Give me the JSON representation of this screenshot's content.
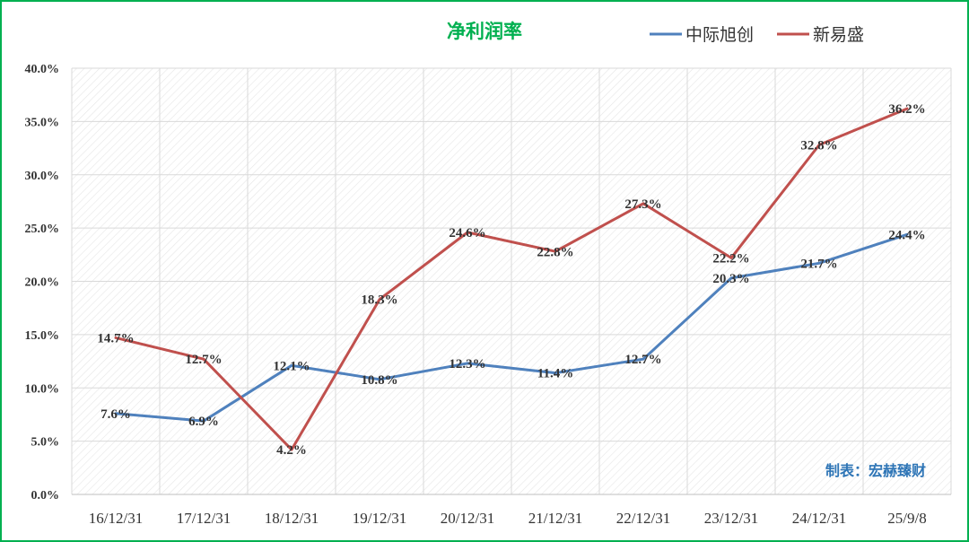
{
  "chart_data": {
    "type": "line",
    "title": "净利润率",
    "categories": [
      "16/12/31",
      "17/12/31",
      "18/12/31",
      "19/12/31",
      "20/12/31",
      "21/12/31",
      "22/12/31",
      "23/12/31",
      "24/12/31",
      "25/9/8"
    ],
    "y_ticks": [
      "0.0%",
      "5.0%",
      "10.0%",
      "15.0%",
      "20.0%",
      "25.0%",
      "30.0%",
      "35.0%",
      "40.0%"
    ],
    "ylim": [
      0,
      40
    ],
    "series": [
      {
        "name": "中际旭创",
        "color": "#4f81bd",
        "values": [
          7.6,
          6.9,
          12.1,
          10.8,
          12.3,
          11.4,
          12.7,
          20.3,
          21.7,
          24.4
        ],
        "labels": [
          "7.6%",
          "6.9%",
          "12.1%",
          "10.8%",
          "12.3%",
          "11.4%",
          "12.7%",
          "20.3%",
          "21.7%",
          "24.4%"
        ]
      },
      {
        "name": "新易盛",
        "color": "#c0504d",
        "values": [
          14.7,
          12.7,
          4.2,
          18.3,
          24.6,
          22.8,
          27.3,
          22.2,
          32.8,
          36.2
        ],
        "labels": [
          "14.7%",
          "12.7%",
          "4.2%",
          "18.3%",
          "24.6%",
          "22.8%",
          "27.3%",
          "22.2%",
          "32.8%",
          "36.2%"
        ]
      }
    ],
    "grid": true,
    "legend": "top-right",
    "annotation": "制表：宏赫臻财"
  }
}
